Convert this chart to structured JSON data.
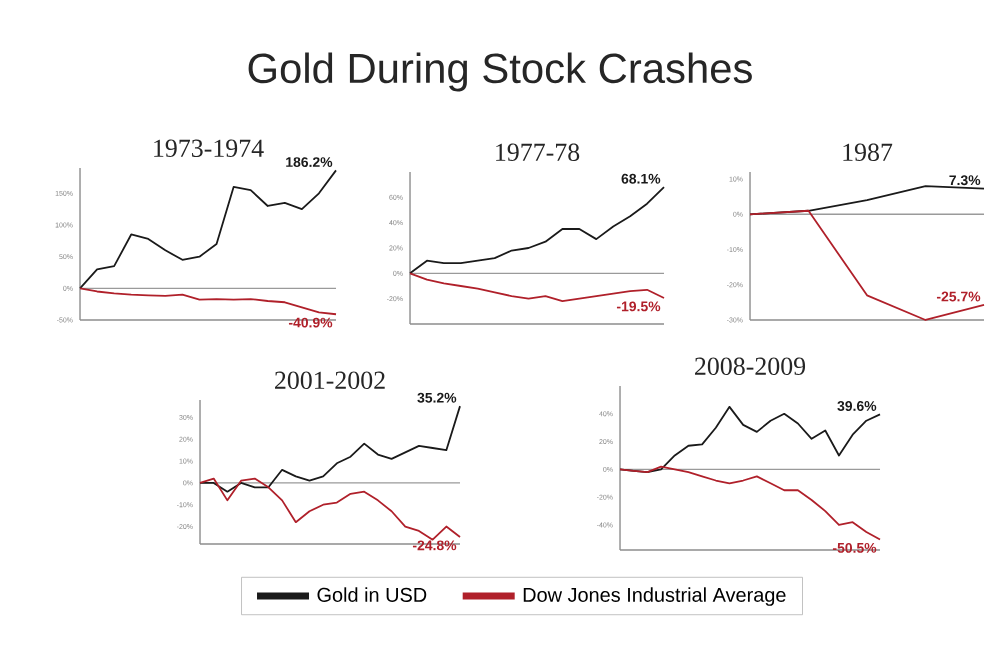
{
  "chart_data": [
    {
      "type": "other",
      "title": "Gold During Stock Crashes"
    },
    {
      "type": "line",
      "title": "1973-1974",
      "categories": [
        null,
        null,
        null,
        null,
        null,
        null,
        null,
        null,
        null,
        null,
        null,
        null,
        null,
        null,
        null,
        null
      ],
      "series": [
        {
          "color": "#1a1a1a",
          "values": [
            0,
            30,
            35,
            85,
            78,
            60,
            45,
            50,
            70,
            160,
            155,
            130,
            135,
            125,
            150,
            186.2
          ],
          "value_labels": [
            null,
            null,
            null,
            null,
            null,
            null,
            null,
            null,
            null,
            null,
            null,
            null,
            null,
            null,
            null,
            "186.2%"
          ]
        },
        {
          "color": "#b0202a",
          "values": [
            0,
            -5,
            -8,
            -10,
            -11,
            -12,
            -10,
            -18,
            -17,
            -18,
            -17,
            -20,
            -22,
            -30,
            -38,
            -40.9
          ],
          "value_labels": [
            null,
            null,
            null,
            null,
            null,
            null,
            null,
            null,
            null,
            null,
            null,
            null,
            null,
            null,
            null,
            "-40.9%"
          ]
        }
      ],
      "ylim": [
        -50,
        190
      ],
      "yticks": [
        {
          "value": -50,
          "label": "-50%"
        },
        {
          "value": 0,
          "label": "0%"
        },
        {
          "value": 50,
          "label": "50%"
        },
        {
          "value": 100,
          "label": "100%"
        },
        {
          "value": 150,
          "label": "150%"
        }
      ],
      "ref_lines": [
        {
          "axis": "y",
          "value": 0,
          "color": "#9a9a9a"
        }
      ],
      "tick_labels": "y"
    },
    {
      "type": "line",
      "title": "1977-78",
      "categories": [
        null,
        null,
        null,
        null,
        null,
        null,
        null,
        null,
        null,
        null,
        null,
        null,
        null,
        null,
        null,
        null
      ],
      "series": [
        {
          "color": "#1a1a1a",
          "values": [
            0,
            10,
            8,
            8,
            10,
            12,
            18,
            20,
            25,
            35,
            35,
            27,
            37,
            45,
            55,
            68.1
          ],
          "value_labels": [
            null,
            null,
            null,
            null,
            null,
            null,
            null,
            null,
            null,
            null,
            null,
            null,
            null,
            null,
            null,
            "68.1%"
          ]
        },
        {
          "color": "#b0202a",
          "values": [
            0,
            -5,
            -8,
            -10,
            -12,
            -15,
            -18,
            -20,
            -18,
            -22,
            -20,
            -18,
            -16,
            -14,
            -13,
            -19.5
          ],
          "value_labels": [
            null,
            null,
            null,
            null,
            null,
            null,
            null,
            null,
            null,
            null,
            null,
            null,
            null,
            null,
            null,
            "-19.5%"
          ]
        }
      ],
      "ylim": [
        -40,
        80
      ],
      "yticks": [
        {
          "value": -20,
          "label": "-20%"
        },
        {
          "value": 0,
          "label": "0%"
        },
        {
          "value": 20,
          "label": "20%"
        },
        {
          "value": 40,
          "label": "40%"
        },
        {
          "value": 60,
          "label": "60%"
        }
      ],
      "ref_lines": [
        {
          "axis": "y",
          "value": 0,
          "color": "#9a9a9a"
        }
      ],
      "tick_labels": "y"
    },
    {
      "type": "line",
      "title": "1987",
      "categories": [
        null,
        null,
        null,
        null,
        null
      ],
      "series": [
        {
          "color": "#1a1a1a",
          "values": [
            0,
            1,
            4,
            8,
            7.3
          ],
          "value_labels": [
            null,
            null,
            null,
            null,
            "7.3%"
          ]
        },
        {
          "color": "#b0202a",
          "values": [
            0,
            1,
            -23,
            -30,
            -25.7
          ],
          "value_labels": [
            null,
            null,
            null,
            null,
            "-25.7%"
          ]
        }
      ],
      "ylim": [
        -30,
        12
      ],
      "yticks": [
        {
          "value": -30,
          "label": "-30%"
        },
        {
          "value": -20,
          "label": "-20%"
        },
        {
          "value": -10,
          "label": "-10%"
        },
        {
          "value": 0,
          "label": "0%"
        },
        {
          "value": 10,
          "label": "10%"
        }
      ],
      "ref_lines": [
        {
          "axis": "y",
          "value": 0,
          "color": "#9a9a9a"
        }
      ],
      "tick_labels": "y"
    },
    {
      "type": "line",
      "title": "2001-2002",
      "categories": [
        null,
        null,
        null,
        null,
        null,
        null,
        null,
        null,
        null,
        null,
        null,
        null,
        null,
        null,
        null,
        null,
        null,
        null,
        null,
        null
      ],
      "series": [
        {
          "color": "#1a1a1a",
          "values": [
            0,
            0,
            -4,
            0,
            -2,
            -2,
            6,
            3,
            1,
            3,
            9,
            12,
            18,
            13,
            11,
            14,
            17,
            16,
            15,
            35.2
          ],
          "value_labels": [
            null,
            null,
            null,
            null,
            null,
            null,
            null,
            null,
            null,
            null,
            null,
            null,
            null,
            null,
            null,
            null,
            null,
            null,
            null,
            "35.2%"
          ]
        },
        {
          "color": "#b0202a",
          "values": [
            0,
            2,
            -8,
            1,
            2,
            -2,
            -8,
            -18,
            -13,
            -10,
            -9,
            -5,
            -4,
            -8,
            -13,
            -20,
            -22,
            -26,
            -20,
            -24.8
          ],
          "value_labels": [
            null,
            null,
            null,
            null,
            null,
            null,
            null,
            null,
            null,
            null,
            null,
            null,
            null,
            null,
            null,
            null,
            null,
            null,
            null,
            "-24.8%"
          ]
        }
      ],
      "ylim": [
        -28,
        38
      ],
      "yticks": [
        {
          "value": -20,
          "label": "-20%"
        },
        {
          "value": -10,
          "label": "-10%"
        },
        {
          "value": 0,
          "label": "0%"
        },
        {
          "value": 10,
          "label": "10%"
        },
        {
          "value": 20,
          "label": "20%"
        },
        {
          "value": 30,
          "label": "30%"
        }
      ],
      "ref_lines": [
        {
          "axis": "y",
          "value": 0,
          "color": "#9a9a9a"
        }
      ],
      "tick_labels": "y"
    },
    {
      "type": "line",
      "title": "2008-2009",
      "categories": [
        null,
        null,
        null,
        null,
        null,
        null,
        null,
        null,
        null,
        null,
        null,
        null,
        null,
        null,
        null,
        null,
        null,
        null,
        null,
        null
      ],
      "series": [
        {
          "name": "Gold in USD",
          "color": "#1a1a1a",
          "values": [
            0,
            -1,
            -2,
            0,
            10,
            17,
            18,
            30,
            45,
            32,
            27,
            35,
            40,
            33,
            22,
            28,
            10,
            25,
            35,
            39.6
          ],
          "value_labels": [
            null,
            null,
            null,
            null,
            null,
            null,
            null,
            null,
            null,
            null,
            null,
            null,
            null,
            null,
            null,
            null,
            null,
            null,
            null,
            "39.6%"
          ]
        },
        {
          "name": "Dow Jones Industrial Average",
          "color": "#b0202a",
          "values": [
            0,
            -1,
            -2,
            2,
            0,
            -2,
            -5,
            -8,
            -10,
            -8,
            -5,
            -10,
            -15,
            -15,
            -22,
            -30,
            -40,
            -38,
            -45,
            -50.5
          ],
          "value_labels": [
            null,
            null,
            null,
            null,
            null,
            null,
            null,
            null,
            null,
            null,
            null,
            null,
            null,
            null,
            null,
            null,
            null,
            null,
            null,
            "-50.5%"
          ]
        }
      ],
      "ylim": [
        -58,
        60
      ],
      "yticks": [
        {
          "value": -40,
          "label": "-40%"
        },
        {
          "value": -20,
          "label": "-20%"
        },
        {
          "value": 0,
          "label": "0%"
        },
        {
          "value": 20,
          "label": "20%"
        },
        {
          "value": 40,
          "label": "40%"
        }
      ],
      "ref_lines": [
        {
          "axis": "y",
          "value": 0,
          "color": "#9a9a9a"
        }
      ],
      "tick_labels": "y",
      "legend": "bottom"
    }
  ]
}
